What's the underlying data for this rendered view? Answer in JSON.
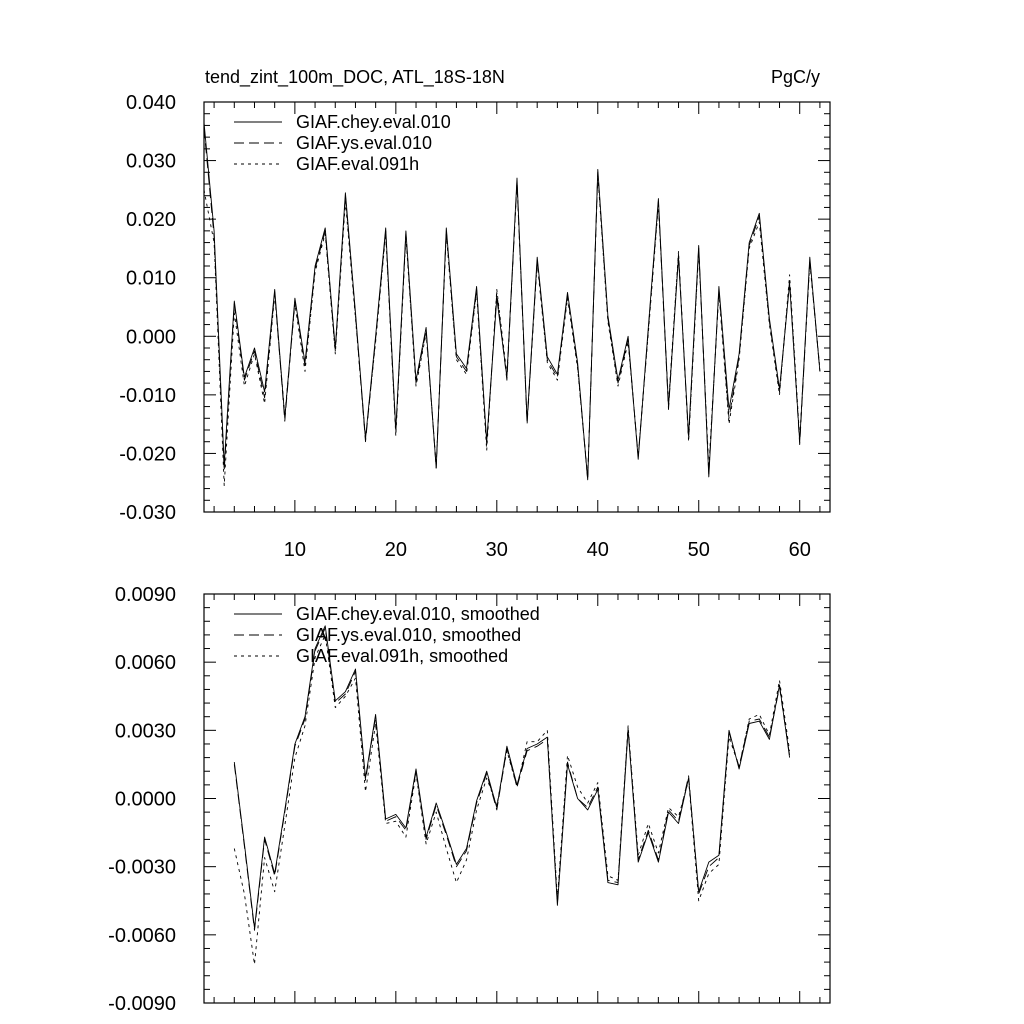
{
  "chart_data": [
    {
      "type": "line",
      "title_left": "tend_zint_100m_DOC, ATL_18S-18N",
      "title_right": "PgC/y",
      "xlim": [
        1,
        63
      ],
      "ylim": [
        -0.03,
        0.04
      ],
      "x_ticks": [
        10,
        20,
        30,
        40,
        50,
        60
      ],
      "x_tick_labels": [
        "10",
        "20",
        "30",
        "40",
        "50",
        "60"
      ],
      "y_ticks": [
        -0.03,
        -0.02,
        -0.01,
        0.0,
        0.01,
        0.02,
        0.03,
        0.04
      ],
      "y_tick_labels": [
        "-0.030",
        "-0.020",
        "-0.010",
        "0.000",
        "0.010",
        "0.020",
        "0.030",
        "0.040"
      ],
      "legend_position": "top-left",
      "x_start": 1,
      "series": [
        {
          "name": "GIAF.chey.eval.010",
          "style": "solid",
          "values": [
            0.0365,
            0.018,
            -0.022,
            0.006,
            -0.007,
            -0.002,
            -0.0095,
            0.008,
            -0.014,
            0.0065,
            -0.0045,
            0.012,
            0.0185,
            -0.002,
            0.0245,
            0.004,
            -0.0175,
            0.0,
            0.0185,
            -0.016,
            0.018,
            -0.0075,
            0.0015,
            -0.0225,
            0.0185,
            -0.003,
            -0.0055,
            0.0085,
            -0.018,
            0.0065,
            -0.007,
            0.027,
            -0.0145,
            0.0135,
            -0.0035,
            -0.0065,
            0.0075,
            -0.0045,
            -0.0245,
            0.0285,
            0.0035,
            -0.0075,
            0.0,
            -0.021,
            0.0015,
            0.0235,
            -0.012,
            0.0135,
            -0.017,
            0.0155,
            -0.024,
            0.0085,
            -0.0125,
            -0.003,
            0.016,
            0.021,
            0.003,
            -0.009,
            0.009,
            -0.018,
            0.0135,
            -0.006
          ]
        },
        {
          "name": "GIAF.ys.eval.010",
          "style": "dashed",
          "values": [
            0.0355,
            0.017,
            -0.023,
            0.0055,
            -0.0075,
            -0.0025,
            -0.0105,
            0.0075,
            -0.0145,
            0.006,
            -0.005,
            0.0115,
            0.018,
            -0.0025,
            0.024,
            0.0035,
            -0.018,
            -0.0005,
            0.018,
            -0.0165,
            0.0175,
            -0.008,
            0.001,
            -0.0225,
            0.018,
            -0.0035,
            -0.006,
            0.008,
            -0.0185,
            0.0075,
            -0.0075,
            0.0265,
            -0.015,
            0.013,
            -0.004,
            -0.007,
            0.007,
            -0.005,
            -0.0245,
            0.028,
            0.003,
            -0.008,
            -0.0005,
            -0.0205,
            0.001,
            0.023,
            -0.0125,
            0.014,
            -0.0175,
            0.015,
            -0.0235,
            0.008,
            -0.014,
            -0.0035,
            0.0155,
            0.0205,
            0.0025,
            -0.0095,
            0.0095,
            -0.0185,
            0.013,
            -0.006
          ]
        },
        {
          "name": "GIAF.eval.091h",
          "style": "dotted",
          "values": [
            0.025,
            0.016,
            -0.0255,
            0.004,
            -0.0085,
            -0.003,
            -0.0115,
            0.007,
            -0.0135,
            0.0055,
            -0.006,
            0.011,
            0.0175,
            -0.003,
            0.023,
            0.003,
            -0.0175,
            -0.001,
            0.0175,
            -0.017,
            0.017,
            -0.0085,
            0.0005,
            -0.022,
            0.0175,
            -0.004,
            -0.0065,
            0.0075,
            -0.0195,
            0.008,
            -0.0065,
            0.026,
            -0.0145,
            0.0125,
            -0.0045,
            -0.0075,
            0.0065,
            -0.0055,
            -0.024,
            0.0275,
            0.0025,
            -0.0085,
            -0.001,
            -0.0205,
            0.0005,
            0.0225,
            -0.0115,
            0.0145,
            -0.018,
            0.0145,
            -0.0225,
            0.0075,
            -0.015,
            -0.004,
            0.015,
            0.0195,
            0.002,
            -0.01,
            0.0105,
            -0.0175,
            0.0125,
            -0.0055
          ]
        }
      ]
    },
    {
      "type": "line",
      "xlim": [
        1,
        63
      ],
      "ylim": [
        -0.009,
        0.009
      ],
      "x_ticks": [
        10,
        20,
        30,
        40,
        50,
        60
      ],
      "y_ticks": [
        -0.009,
        -0.006,
        -0.003,
        0.0,
        0.003,
        0.006,
        0.009
      ],
      "y_tick_labels": [
        "-0.0090",
        "-0.0060",
        "-0.0030",
        "0.0000",
        "0.0030",
        "0.0060",
        "0.0090"
      ],
      "legend_position": "top-left",
      "x_start": 4,
      "series": [
        {
          "name": "GIAF.chey.eval.010, smoothed",
          "style": "solid",
          "values": [
            0.0016,
            -0.002,
            -0.0057,
            -0.0017,
            -0.0033,
            -0.0005,
            0.0024,
            0.0036,
            0.0066,
            0.0076,
            0.0043,
            0.0047,
            0.0057,
            0.0009,
            0.0037,
            -0.0009,
            -0.0007,
            -0.0013,
            0.0013,
            -0.0017,
            -0.0002,
            -0.0015,
            -0.0029,
            -0.0022,
            -0.0001,
            0.0012,
            -0.0004,
            0.0023,
            0.0006,
            0.0022,
            0.0024,
            0.0027,
            -0.0047,
            0.0015,
            0.0,
            -0.0005,
            0.0004,
            -0.0037,
            -0.0038,
            0.003,
            -0.0028,
            -0.0015,
            -0.0028,
            -0.0006,
            -0.0011,
            0.0009,
            -0.0041,
            -0.0028,
            -0.0025,
            0.003,
            0.0013,
            0.0033,
            0.0034,
            0.0026,
            0.005,
            0.0018
          ]
        },
        {
          "name": "GIAF.ys.eval.010, smoothed",
          "style": "dashed",
          "values": [
            0.0015,
            -0.0021,
            -0.0058,
            -0.0018,
            -0.0034,
            -0.0006,
            0.0023,
            0.0035,
            0.0065,
            0.0075,
            0.0042,
            0.0046,
            0.0056,
            0.0008,
            0.0036,
            -0.001,
            -0.0008,
            -0.0014,
            0.0012,
            -0.0018,
            -0.0003,
            -0.0016,
            -0.003,
            -0.0023,
            -0.0002,
            0.0011,
            -0.0005,
            0.0022,
            0.0005,
            0.0021,
            0.0023,
            0.0026,
            -0.0046,
            0.0016,
            0.0,
            -0.0004,
            0.0005,
            -0.0036,
            -0.0037,
            0.0031,
            -0.0027,
            -0.0014,
            -0.0027,
            -0.0005,
            -0.001,
            0.001,
            -0.0042,
            -0.003,
            -0.0026,
            0.0029,
            0.0014,
            0.0034,
            0.0035,
            0.0027,
            0.0049,
            0.0019
          ]
        },
        {
          "name": "GIAF.eval.091h, smoothed",
          "style": "dotted",
          "values": [
            -0.0022,
            -0.0042,
            -0.0073,
            -0.0026,
            -0.0041,
            -0.0012,
            0.0018,
            0.0032,
            0.0062,
            0.0072,
            0.004,
            0.0045,
            0.0053,
            0.0003,
            0.0033,
            -0.0011,
            -0.001,
            -0.0017,
            0.0011,
            -0.002,
            -0.0006,
            -0.0022,
            -0.0037,
            -0.0027,
            -0.0005,
            0.0009,
            -0.0003,
            0.0021,
            0.0005,
            0.0025,
            0.0025,
            0.003,
            -0.0044,
            0.0019,
            0.0005,
            -0.0002,
            0.0007,
            -0.0034,
            -0.0036,
            0.0032,
            -0.0025,
            -0.0011,
            -0.0024,
            -0.0004,
            -0.0008,
            0.0008,
            -0.0045,
            -0.0033,
            -0.0029,
            0.0027,
            0.0014,
            0.0035,
            0.0037,
            0.0028,
            0.0052,
            0.0021
          ]
        }
      ]
    }
  ]
}
